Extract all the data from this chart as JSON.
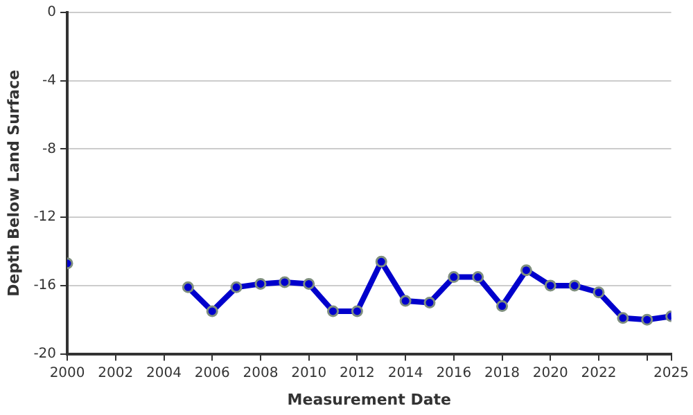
{
  "chart_data": {
    "type": "line",
    "xlabel": "Measurement Date",
    "ylabel": "Depth Below Land Surface",
    "x": [
      2000,
      2001,
      2002,
      2003,
      2004,
      2005,
      2006,
      2007,
      2008,
      2009,
      2010,
      2011,
      2012,
      2013,
      2014,
      2015,
      2016,
      2017,
      2018,
      2019,
      2020,
      2021,
      2022,
      2023,
      2024,
      2025
    ],
    "series": [
      {
        "color": "#0000cc",
        "values": [
          -14.7,
          null,
          null,
          null,
          null,
          -16.1,
          -17.5,
          -16.1,
          -15.9,
          -15.8,
          -15.9,
          -17.5,
          -17.5,
          -14.6,
          -16.9,
          -17.0,
          -15.5,
          -15.5,
          -17.2,
          -15.1,
          -16.0,
          -16.0,
          -16.4,
          -17.9,
          -18.0,
          -17.8
        ]
      }
    ],
    "xlim": [
      2000,
      2025
    ],
    "xticks": [
      2000,
      2002,
      2004,
      2006,
      2008,
      2010,
      2012,
      2014,
      2016,
      2018,
      2020,
      2022,
      {
        "value": 2024,
        "label": null
      },
      2025
    ],
    "ylim": [
      -20,
      0
    ],
    "yticks": [
      -20,
      -16,
      -12,
      -8,
      -4,
      0
    ],
    "grid": "y",
    "legend": false,
    "marker": "circle",
    "line_style": "solid"
  }
}
